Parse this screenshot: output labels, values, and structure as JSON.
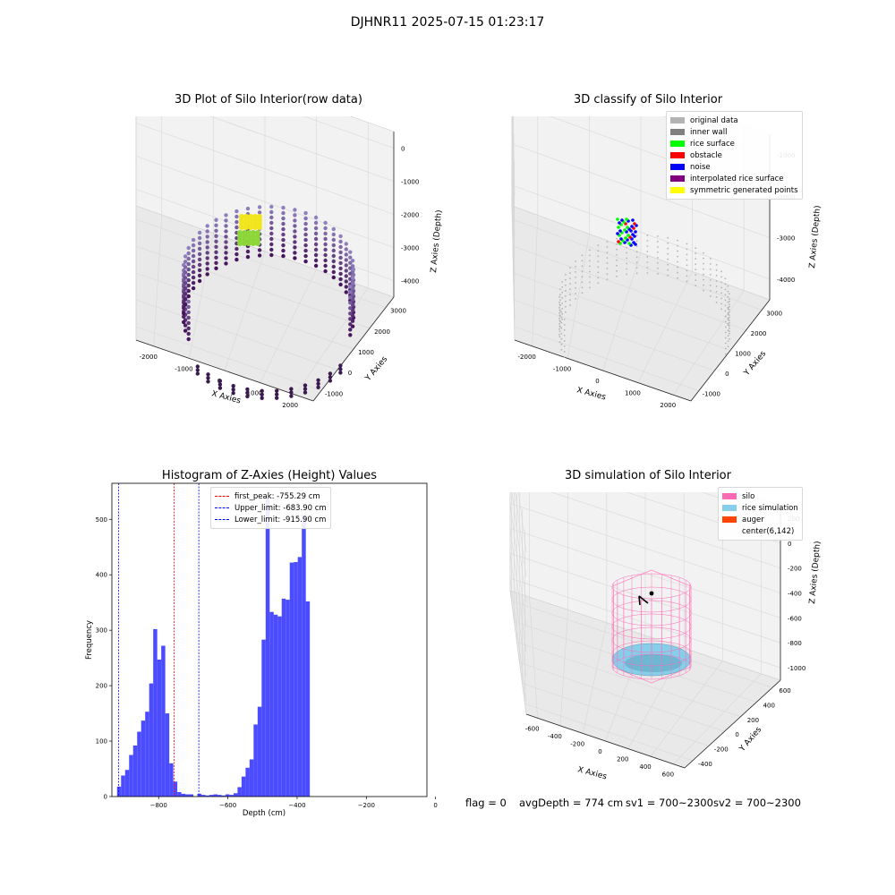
{
  "suptitle": "DJHNR11 2025-07-15 01:23:17",
  "panel_raw": {
    "title": "3D Plot of Silo Interior(row data)",
    "xlabel": "X Axies",
    "ylabel": "Y Axies",
    "zlabel": "Z Axies (Depth)",
    "xticks": [
      "-2000",
      "-1000",
      "0",
      "1000",
      "2000"
    ],
    "yticks": [
      "-1000",
      "0",
      "1000",
      "2000",
      "3000"
    ],
    "zticks": [
      "0",
      "-1000",
      "-2000",
      "-3000",
      "-4000"
    ]
  },
  "panel_classify": {
    "title": "3D classify of Silo Interior",
    "xlabel": "X Axies",
    "ylabel": "Y Axies",
    "zlabel": "Z Axies (Depth)",
    "xticks": [
      "-2000",
      "-1000",
      "0",
      "1000",
      "2000"
    ],
    "yticks": [
      "-1000",
      "0",
      "1000",
      "2000",
      "3000"
    ],
    "zticks": [
      "-1000",
      "-2000",
      "-3000",
      "-4000"
    ],
    "legend": [
      {
        "label": "original data",
        "color": "#b3b3b3"
      },
      {
        "label": "inner wall",
        "color": "#808080"
      },
      {
        "label": "rice surface",
        "color": "#00ff00"
      },
      {
        "label": "obstacle",
        "color": "#ff0000"
      },
      {
        "label": "noise",
        "color": "#0000ff"
      },
      {
        "label": "interpolated rice surface",
        "color": "#800080"
      },
      {
        "label": "symmetric generated points",
        "color": "#ffff00"
      }
    ]
  },
  "panel_sim": {
    "title": "3D simulation of Silo Interior",
    "xlabel": "X Axies",
    "ylabel": "Y Axies",
    "zlabel": "Z Axies (Depth)",
    "xticks": [
      "-600",
      "-400",
      "-200",
      "0",
      "200",
      "400",
      "600"
    ],
    "yticks": [
      "-400",
      "-200",
      "0",
      "200",
      "400",
      "600"
    ],
    "zticks": [
      "200",
      "0",
      "-200",
      "-400",
      "-600",
      "-800",
      "-1000"
    ],
    "legend": [
      {
        "label": "silo",
        "color": "#ff69b4"
      },
      {
        "label": "rice simulation",
        "color": "#87ceeb"
      },
      {
        "label": "auger",
        "color": "#ff4500"
      },
      {
        "label": "center(6,142)",
        "color": ""
      }
    ]
  },
  "chart_data": {
    "type": "bar",
    "title": "Histogram of Z-Axies (Height) Values",
    "xlabel": "Depth (cm)",
    "ylabel": "Frequency",
    "xlim": [
      -935,
      -25
    ],
    "ylim": [
      0,
      565
    ],
    "xticks": [
      -800,
      -600,
      -400,
      -200,
      0
    ],
    "yticks": [
      0,
      100,
      200,
      300,
      400,
      500
    ],
    "bar_color": "#4b4bff",
    "bin_width": 11.6,
    "bins_start": -920.0,
    "values": [
      18,
      38,
      48,
      75,
      92,
      117,
      137,
      153,
      204,
      302,
      247,
      272,
      150,
      60,
      27,
      8,
      5,
      4,
      4,
      0,
      5,
      3,
      2,
      3,
      4,
      3,
      2,
      4,
      3,
      6,
      17,
      36,
      52,
      67,
      130,
      162,
      283,
      538,
      333,
      328,
      325,
      357,
      355,
      422,
      423,
      432,
      508,
      352
    ],
    "vlines": [
      {
        "label": "first_peak: -755.29 cm",
        "x": -755.29,
        "color": "#ff0000"
      },
      {
        "label": "Upper_limit: -683.90 cm",
        "x": -683.9,
        "color": "#0000ff"
      },
      {
        "label": "Lower_limit: -915.90 cm",
        "x": -915.9,
        "color": "#0000ff"
      }
    ],
    "legend_position": "top-center"
  },
  "footer": {
    "flag": "flag = 0",
    "avg_depth": "avgDepth = 774 cm",
    "sv1": "sv1 = 700~2300",
    "sv2": "sv2 = 700~2300"
  }
}
